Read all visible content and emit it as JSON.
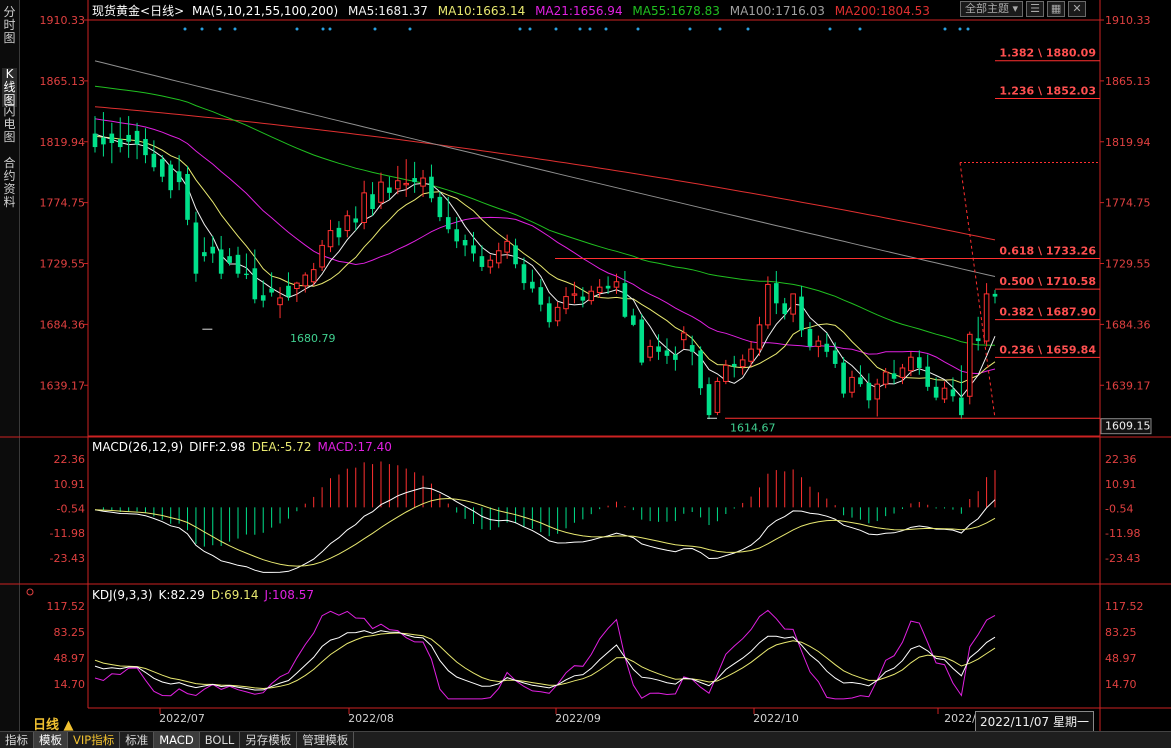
{
  "left_tabs": [
    {
      "label": "分时图",
      "active": false
    },
    {
      "label": "K线图",
      "active": true
    },
    {
      "label": "闪电图",
      "active": false
    },
    {
      "label": "合约资料",
      "active": false
    }
  ],
  "main_header": {
    "symbol": "现货黄金",
    "period": "<日线>",
    "ma_params": "MA(5,10,21,55,100,200)",
    "ma5": "MA5:1681.37",
    "ma10": "MA10:1663.14",
    "ma21": "MA21:1656.94",
    "ma55": "MA55:1678.83",
    "ma100": "MA100:1716.03",
    "ma200": "MA200:1804.53"
  },
  "toolbar": {
    "topic_select": "全部主题",
    "icons": [
      "list-icon",
      "grid-icon",
      "close-icon"
    ]
  },
  "colors": {
    "up": "#ff3030",
    "down": "#00e08a",
    "ma5": "#f0f0f0",
    "ma10": "#e8e870",
    "ma21": "#e020e0",
    "ma55": "#20c020",
    "ma100": "#909090",
    "ma200": "#e03030",
    "fib": "#ff3030",
    "axis": "#cc2222",
    "marker": "#2aa0e0"
  },
  "price_axis_labels": [
    "1910.33",
    "1865.13",
    "1819.94",
    "1774.75",
    "1729.55",
    "1684.36",
    "1639.17"
  ],
  "current_price_label": "1609.15",
  "annotations": {
    "low1": "1680.79",
    "low2": "1614.67"
  },
  "fib_levels": [
    {
      "label": "1.382 \\ 1880.09",
      "price": 1880.09
    },
    {
      "label": "1.236 \\ 1852.03",
      "price": 1852.03
    },
    {
      "label": "0.618 \\ 1733.26",
      "price": 1733.26
    },
    {
      "label": "0.500 \\ 1710.58",
      "price": 1710.58
    },
    {
      "label": "0.382 \\ 1687.90",
      "price": 1687.9
    },
    {
      "label": "0.236 \\ 1659.84",
      "price": 1659.84
    }
  ],
  "macd_header": {
    "params": "MACD(26,12,9)",
    "diff": "DIFF:2.98",
    "dea": "DEA:-5.72",
    "macd": "MACD:17.40"
  },
  "macd_axis_labels": [
    "22.36",
    "10.91",
    "-0.54",
    "-11.98",
    "-23.43"
  ],
  "kdj_header": {
    "params": "KDJ(9,3,3)",
    "k": "K:82.29",
    "d": "D:69.14",
    "j": "J:108.57"
  },
  "kdj_axis_labels": [
    "117.52",
    "83.25",
    "48.97",
    "14.70"
  ],
  "date_axis_labels": [
    "2022/07",
    "2022/08",
    "2022/09",
    "2022/10",
    "2022/"
  ],
  "period_label": "日线 ▲",
  "current_date": "2022/11/07 星期一",
  "bottom_tabs": [
    {
      "label": "指标",
      "active": false,
      "vip": false
    },
    {
      "label": "模板",
      "active": true,
      "vip": false
    },
    {
      "label": "VIP指标",
      "active": false,
      "vip": true
    },
    {
      "label": "标准",
      "active": false,
      "vip": false
    },
    {
      "label": "MACD",
      "active": true,
      "vip": false
    },
    {
      "label": "BOLL",
      "active": false,
      "vip": false
    },
    {
      "label": "另存模板",
      "active": false,
      "vip": false
    },
    {
      "label": "管理模板",
      "active": false,
      "vip": false
    }
  ],
  "candles": [
    [
      1826,
      1839,
      1816,
      1812
    ],
    [
      1823,
      1842,
      1818,
      1809
    ],
    [
      1826,
      1834,
      1819,
      1804
    ],
    [
      1822,
      1838,
      1816,
      1812
    ],
    [
      1825,
      1839,
      1820,
      1808
    ],
    [
      1828,
      1834,
      1818,
      1807
    ],
    [
      1822,
      1830,
      1810,
      1804
    ],
    [
      1811,
      1821,
      1801,
      1798
    ],
    [
      1807,
      1810,
      1794,
      1790
    ],
    [
      1803,
      1806,
      1784,
      1778
    ],
    [
      1798,
      1810,
      1790,
      1784
    ],
    [
      1796,
      1802,
      1762,
      1758
    ],
    [
      1760,
      1768,
      1722,
      1716
    ],
    [
      1738,
      1749,
      1735,
      1731
    ],
    [
      1742,
      1750,
      1737,
      1730
    ],
    [
      1740,
      1750,
      1722,
      1718
    ],
    [
      1735,
      1741,
      1730,
      1728
    ],
    [
      1736,
      1742,
      1722,
      1719
    ],
    [
      1722,
      1737,
      1721,
      1718
    ],
    [
      1726,
      1740,
      1703,
      1700
    ],
    [
      1706,
      1717,
      1702,
      1697
    ],
    [
      1711,
      1723,
      1708,
      1705
    ],
    [
      1699,
      1712,
      1704,
      1689
    ],
    [
      1713,
      1723,
      1705,
      1702
    ],
    [
      1711,
      1716,
      1715,
      1701
    ],
    [
      1713,
      1723,
      1721,
      1708
    ],
    [
      1716,
      1730,
      1725,
      1713
    ],
    [
      1727,
      1747,
      1743,
      1724
    ],
    [
      1742,
      1762,
      1754,
      1738
    ],
    [
      1756,
      1761,
      1749,
      1743
    ],
    [
      1754,
      1769,
      1765,
      1749
    ],
    [
      1763,
      1772,
      1760,
      1754
    ],
    [
      1760,
      1791,
      1782,
      1755
    ],
    [
      1781,
      1790,
      1770,
      1765
    ],
    [
      1775,
      1797,
      1790,
      1770
    ],
    [
      1786,
      1794,
      1782,
      1777
    ],
    [
      1785,
      1802,
      1791,
      1781
    ],
    [
      1788,
      1807,
      1789,
      1779
    ],
    [
      1793,
      1805,
      1790,
      1782
    ],
    [
      1787,
      1799,
      1793,
      1779
    ],
    [
      1794,
      1803,
      1778,
      1775
    ],
    [
      1779,
      1783,
      1764,
      1761
    ],
    [
      1764,
      1779,
      1755,
      1752
    ],
    [
      1755,
      1764,
      1746,
      1741
    ],
    [
      1747,
      1751,
      1743,
      1735
    ],
    [
      1743,
      1753,
      1737,
      1731
    ],
    [
      1735,
      1743,
      1727,
      1724
    ],
    [
      1727,
      1736,
      1732,
      1722
    ],
    [
      1730,
      1745,
      1739,
      1726
    ],
    [
      1738,
      1751,
      1746,
      1733
    ],
    [
      1743,
      1748,
      1729,
      1726
    ],
    [
      1729,
      1734,
      1715,
      1710
    ],
    [
      1716,
      1725,
      1711,
      1708
    ],
    [
      1712,
      1718,
      1699,
      1694
    ],
    [
      1700,
      1705,
      1686,
      1682
    ],
    [
      1687,
      1701,
      1697,
      1683
    ],
    [
      1696,
      1712,
      1705,
      1692
    ],
    [
      1706,
      1716,
      1707,
      1700
    ],
    [
      1705,
      1712,
      1702,
      1697
    ],
    [
      1702,
      1713,
      1709,
      1699
    ],
    [
      1708,
      1718,
      1712,
      1704
    ],
    [
      1713,
      1720,
      1711,
      1707
    ],
    [
      1712,
      1722,
      1716,
      1707
    ],
    [
      1715,
      1724,
      1690,
      1689
    ],
    [
      1691,
      1696,
      1684,
      1683
    ],
    [
      1688,
      1692,
      1656,
      1654
    ],
    [
      1660,
      1673,
      1668,
      1657
    ],
    [
      1668,
      1677,
      1664,
      1658
    ],
    [
      1665,
      1674,
      1661,
      1655
    ],
    [
      1662,
      1668,
      1658,
      1650
    ],
    [
      1673,
      1683,
      1678,
      1666
    ],
    [
      1669,
      1676,
      1664,
      1654
    ],
    [
      1665,
      1668,
      1637,
      1632
    ],
    [
      1640,
      1645,
      1617,
      1614
    ],
    [
      1619,
      1645,
      1642,
      1617
    ],
    [
      1642,
      1658,
      1654,
      1640
    ],
    [
      1655,
      1661,
      1653,
      1645
    ],
    [
      1653,
      1662,
      1658,
      1647
    ],
    [
      1657,
      1672,
      1666,
      1653
    ],
    [
      1666,
      1690,
      1684,
      1661
    ],
    [
      1684,
      1720,
      1714,
      1681
    ],
    [
      1715,
      1724,
      1700,
      1692
    ],
    [
      1700,
      1704,
      1692,
      1688
    ],
    [
      1692,
      1701,
      1707,
      1686
    ],
    [
      1705,
      1713,
      1680,
      1675
    ],
    [
      1681,
      1686,
      1668,
      1665
    ],
    [
      1668,
      1676,
      1672,
      1660
    ],
    [
      1670,
      1678,
      1664,
      1660
    ],
    [
      1665,
      1671,
      1655,
      1652
    ],
    [
      1656,
      1660,
      1633,
      1630
    ],
    [
      1634,
      1650,
      1645,
      1630
    ],
    [
      1645,
      1654,
      1640,
      1638
    ],
    [
      1641,
      1648,
      1628,
      1622
    ],
    [
      1629,
      1644,
      1640,
      1616
    ],
    [
      1640,
      1652,
      1649,
      1637
    ],
    [
      1648,
      1658,
      1644,
      1640
    ],
    [
      1645,
      1655,
      1652,
      1640
    ],
    [
      1650,
      1664,
      1660,
      1646
    ],
    [
      1660,
      1665,
      1652,
      1647
    ],
    [
      1653,
      1662,
      1638,
      1635
    ],
    [
      1638,
      1645,
      1630,
      1628
    ],
    [
      1629,
      1642,
      1637,
      1626
    ],
    [
      1636,
      1645,
      1631,
      1627
    ],
    [
      1630,
      1654,
      1617,
      1614
    ],
    [
      1631,
      1679,
      1677,
      1625
    ],
    [
      1674,
      1690,
      1672,
      1665
    ],
    [
      1672,
      1715,
      1707,
      1668
    ],
    [
      1707,
      1710,
      1705,
      1700
    ]
  ]
}
